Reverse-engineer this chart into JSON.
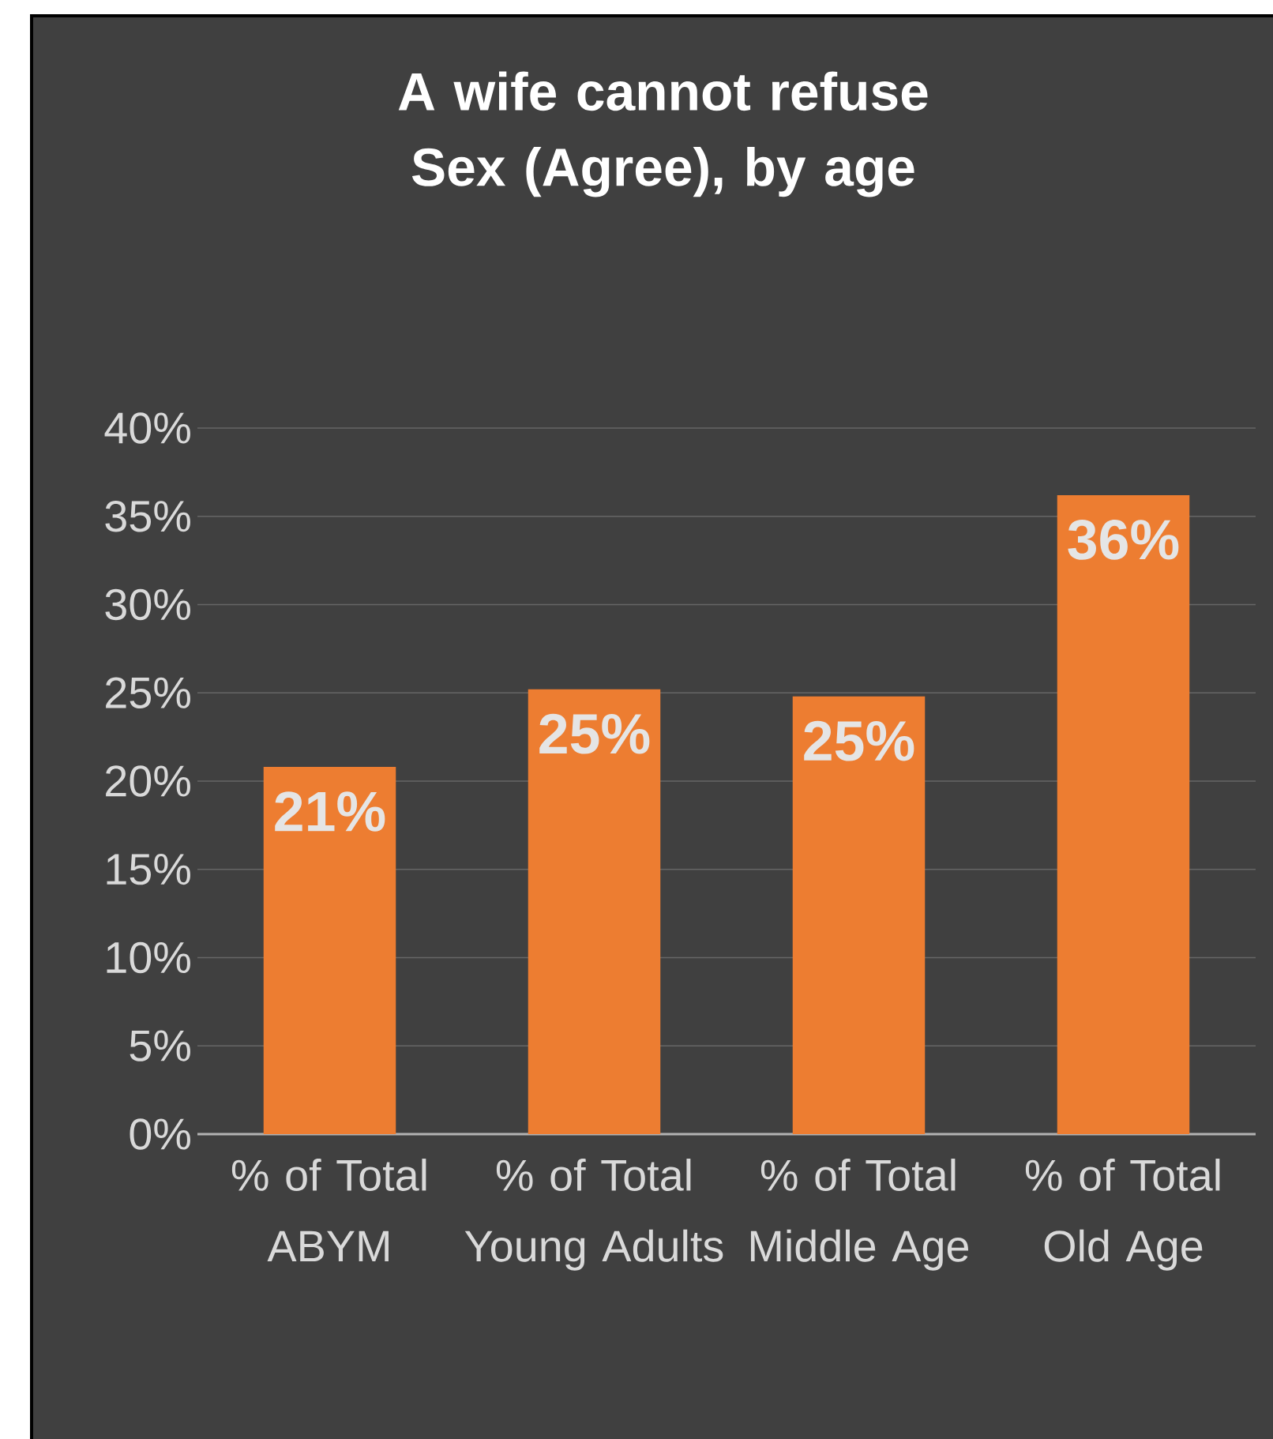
{
  "chart_data": {
    "type": "bar",
    "title": "A wife cannot refuse Sex (Agree), by age",
    "categories": [
      "% of Total ABYM",
      "% of Total Young Adults",
      "% of Total Middle Age",
      "% of Total Old Age"
    ],
    "values": [
      20.8,
      25.2,
      24.8,
      36.2
    ],
    "value_labels": [
      "21%",
      "25%",
      "25%",
      "36%"
    ],
    "color": "#ed7d31",
    "ylim": [
      0,
      40
    ],
    "yticks": [
      {
        "value": 0,
        "label": "0%"
      },
      {
        "value": 5,
        "label": "5%"
      },
      {
        "value": 10,
        "label": "10%"
      },
      {
        "value": 15,
        "label": "15%"
      },
      {
        "value": 20,
        "label": "20%"
      },
      {
        "value": 25,
        "label": "25%"
      },
      {
        "value": 30,
        "label": "30%"
      },
      {
        "value": 35,
        "label": "35%"
      },
      {
        "value": 40,
        "label": "40%"
      }
    ],
    "grid": "y"
  }
}
